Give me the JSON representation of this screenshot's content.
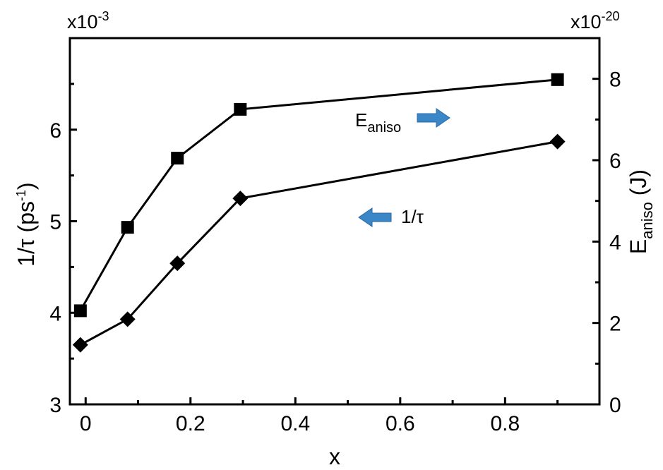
{
  "chart_data": {
    "type": "line",
    "xlabel": "x",
    "x_ticks": [
      "0",
      "0.2",
      "0.4",
      "0.6",
      "0.8"
    ],
    "xlim": [
      -0.03,
      0.98
    ],
    "left_axis": {
      "label_main": "1/τ (ps",
      "label_sup": "-1",
      "label_end": ")",
      "multiplier_base": "x10",
      "multiplier_exp": "-3",
      "ylim": [
        3,
        7
      ],
      "ticks": [
        "3",
        "4",
        "5",
        "6"
      ]
    },
    "right_axis": {
      "label_base": "E",
      "label_sub": "aniso",
      "label_end": " (J)",
      "multiplier_base": "x10",
      "multiplier_exp": "-20",
      "ylim": [
        0,
        9
      ],
      "ticks": [
        "0",
        "2",
        "4",
        "6",
        "8"
      ]
    },
    "series": [
      {
        "name": "E_aniso",
        "axis": "right",
        "marker": "square",
        "x": [
          -0.01,
          0.08,
          0.175,
          0.295,
          0.9
        ],
        "values": [
          2.3,
          4.35,
          6.05,
          7.25,
          7.98
        ]
      },
      {
        "name": "1/τ",
        "axis": "left",
        "marker": "diamond",
        "x": [
          -0.01,
          0.08,
          0.175,
          0.295,
          0.9
        ],
        "values": [
          3.65,
          3.93,
          4.54,
          5.25,
          5.87
        ]
      }
    ],
    "annotations": [
      {
        "text_base": "E",
        "text_sub": "aniso",
        "arrow": "right",
        "color": "#3b86c7"
      },
      {
        "text": "1/τ",
        "arrow": "left",
        "color": "#3b86c7"
      }
    ]
  }
}
